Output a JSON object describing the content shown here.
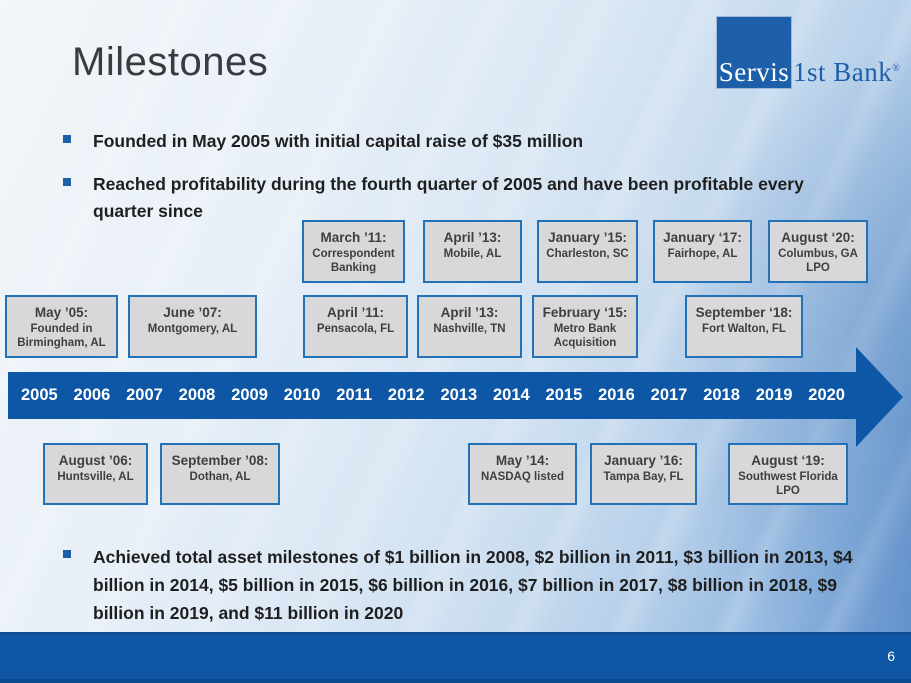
{
  "title": "Milestones",
  "logo": {
    "square_text": "Servis",
    "right_text": "1st Bank",
    "registered_mark": "®"
  },
  "bullets_top": [
    "Founded in May 2005 with initial capital raise of $35 million",
    "Reached profitability during the fourth quarter of 2005 and have been profitable every quarter since"
  ],
  "asset_bullet": "Achieved total asset milestones of $1 billion in 2008, $2 billion in 2011, $3 billion in 2013, $4 billion in 2014, $5 billion in 2015, $6 billion in 2016,  $7 billion in 2017, $8 billion in 2018, $9 billion in 2019, and $11 billion in 2020",
  "timeline": {
    "years": [
      "2005",
      "2006",
      "2007",
      "2008",
      "2009",
      "2010",
      "2011",
      "2012",
      "2013",
      "2014",
      "2015",
      "2016",
      "2017",
      "2018",
      "2019",
      "2020"
    ],
    "rows": {
      "top": [
        {
          "date": "March ’11:",
          "detail": "Correspondent Banking"
        },
        {
          "date": "April ’13:",
          "detail": "Mobile, AL"
        },
        {
          "date": "January ’15:",
          "detail": "Charleston, SC"
        },
        {
          "date": "January ‘17:",
          "detail": "Fairhope, AL"
        },
        {
          "date": "August ‘20:",
          "detail": "Columbus, GA LPO"
        }
      ],
      "mid": [
        {
          "date": "May ’05:",
          "detail": "Founded in Birmingham, AL"
        },
        {
          "date": "June ’07:",
          "detail": "Montgomery, AL"
        },
        {
          "date": "April ’11:",
          "detail": "Pensacola, FL"
        },
        {
          "date": "April ’13:",
          "detail": "Nashville, TN"
        },
        {
          "date": "February ‘15:",
          "detail": "Metro Bank Acquisition"
        },
        {
          "date": "September ‘18:",
          "detail": "Fort Walton, FL"
        }
      ],
      "bottom": [
        {
          "date": "August ’06:",
          "detail": "Huntsville, AL"
        },
        {
          "date": "September ’08:",
          "detail": "Dothan, AL"
        },
        {
          "date": "May ’14:",
          "detail": "NASDAQ listed"
        },
        {
          "date": "January ’16:",
          "detail": "Tampa Bay, FL"
        },
        {
          "date": "August ‘19:",
          "detail": "Southwest Florida LPO"
        }
      ]
    }
  },
  "page_number": "6",
  "colors": {
    "accent_blue": "#0e56a6",
    "box_border_blue": "#2272ba",
    "box_fill_gray": "#d8d8d8",
    "logo_blue": "#1d5fa9",
    "bullet_square_blue": "#1f5fa8"
  }
}
